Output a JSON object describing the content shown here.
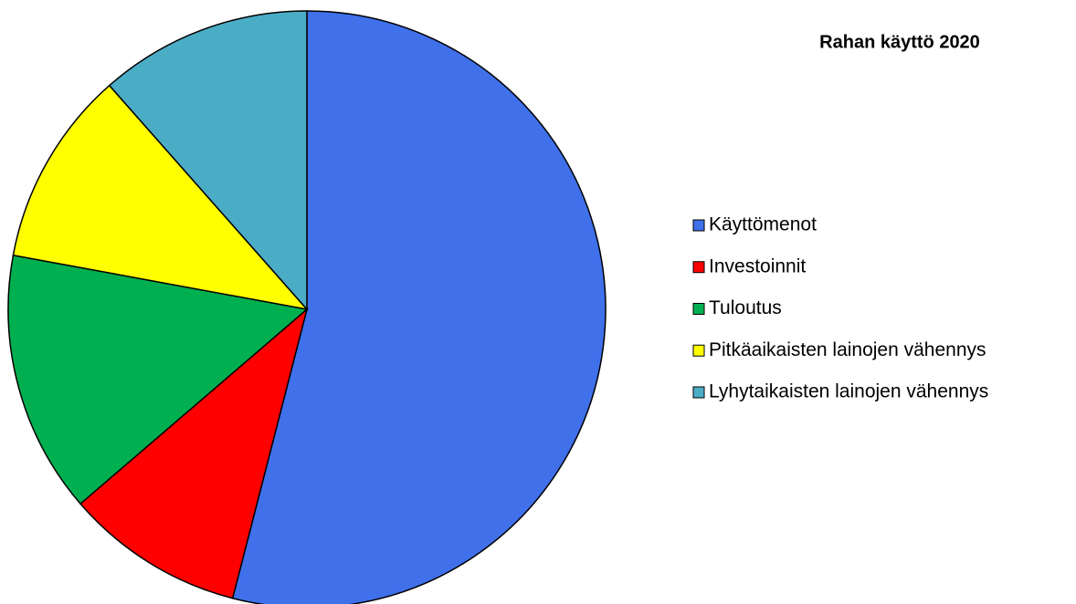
{
  "chart_data": {
    "type": "pie",
    "title": "Rahan käyttö 2020",
    "categories": [
      "Käyttömenot",
      "Investoinnit",
      "Tuloutus",
      "Pitkäaikaisten lainojen vähennys",
      "Lyhytaikaisten lainojen vähennys"
    ],
    "values": [
      54,
      9.7,
      14.2,
      10.6,
      11.5
    ],
    "colors": [
      "#4070ea",
      "#ff0000",
      "#00b050",
      "#ffff00",
      "#4bacc6"
    ],
    "legend": "right"
  }
}
